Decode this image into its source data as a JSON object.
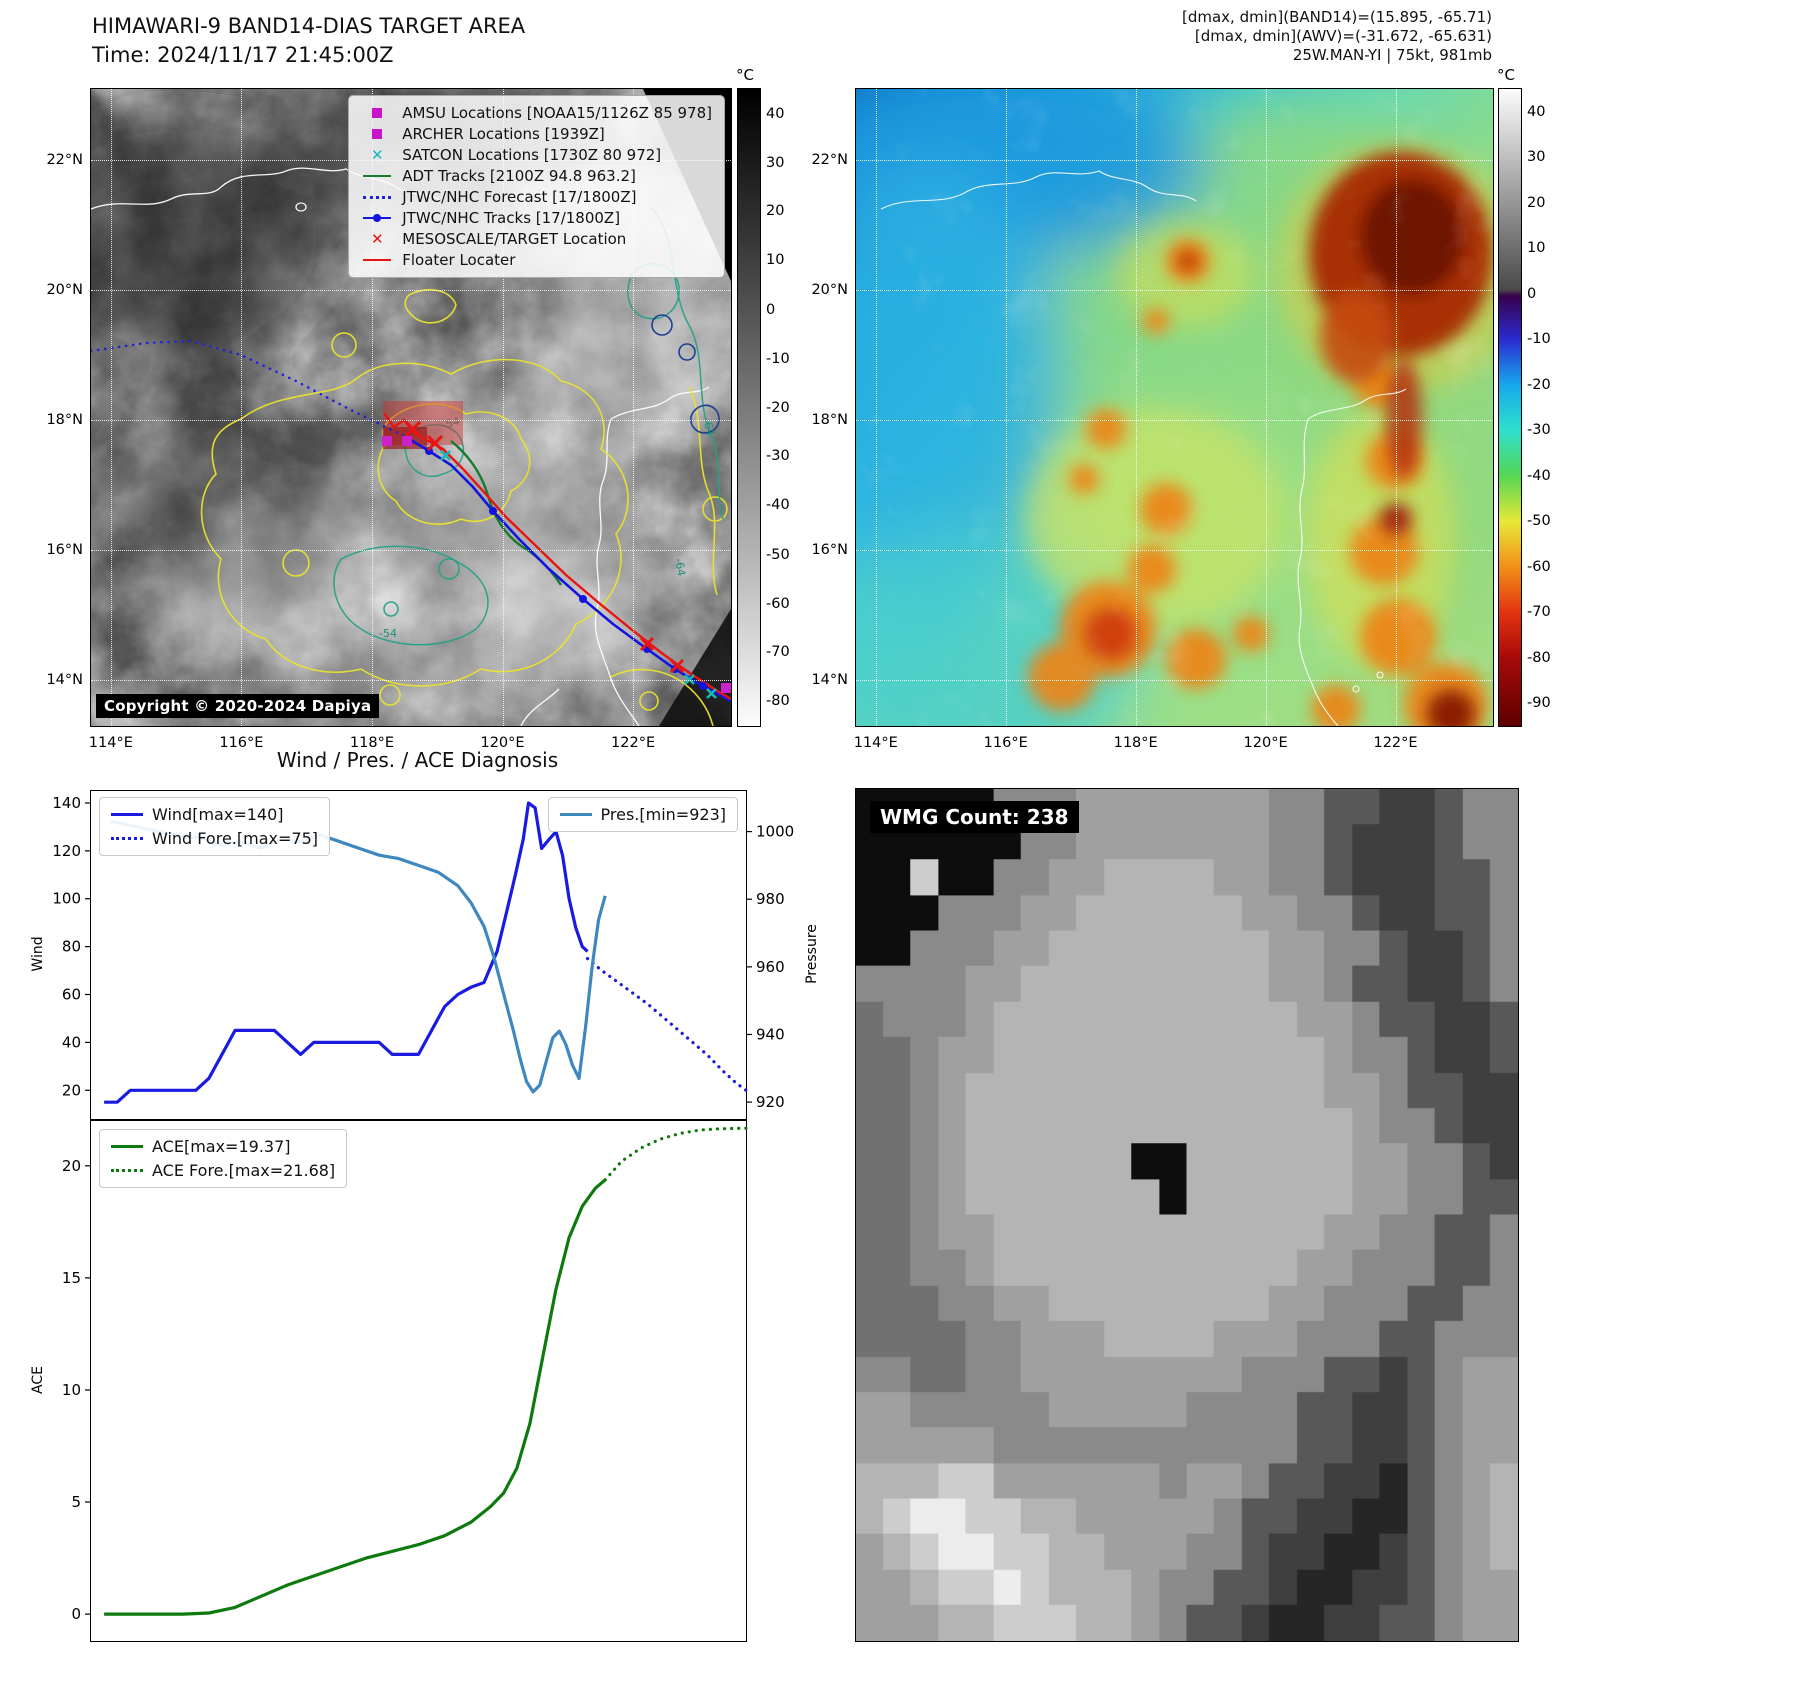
{
  "band14": {
    "title": "HIMAWARI-9 BAND14-DIAS TARGET AREA",
    "subtitle": "Time: 2024/11/17 21:45:00Z",
    "copyright": "Copyright © 2020-2024 Dapiya",
    "colorbar_unit": "°C",
    "colorbar_ticks": [
      {
        "label": "40",
        "pos": 0.0385
      },
      {
        "label": "30",
        "pos": 0.1154
      },
      {
        "label": "20",
        "pos": 0.1923
      },
      {
        "label": "10",
        "pos": 0.2692
      },
      {
        "label": "0",
        "pos": 0.3462
      },
      {
        "label": "-10",
        "pos": 0.4231
      },
      {
        "label": "-20",
        "pos": 0.5
      },
      {
        "label": "-30",
        "pos": 0.5769
      },
      {
        "label": "-40",
        "pos": 0.6538
      },
      {
        "label": "-50",
        "pos": 0.7308
      },
      {
        "label": "-60",
        "pos": 0.8077
      },
      {
        "label": "-70",
        "pos": 0.8846
      },
      {
        "label": "-80",
        "pos": 0.9615
      }
    ],
    "x_ticks": [
      {
        "label": "114°E",
        "pos": 0.031
      },
      {
        "label": "116°E",
        "pos": 0.235
      },
      {
        "label": "118°E",
        "pos": 0.439
      },
      {
        "label": "120°E",
        "pos": 0.643
      },
      {
        "label": "122°E",
        "pos": 0.847
      }
    ],
    "y_ticks": [
      {
        "label": "22°N",
        "pos": 0.112
      },
      {
        "label": "20°N",
        "pos": 0.316
      },
      {
        "label": "18°N",
        "pos": 0.52
      },
      {
        "label": "16°N",
        "pos": 0.724
      },
      {
        "label": "14°N",
        "pos": 0.928
      }
    ],
    "legend": [
      {
        "type": "square",
        "color": "#c814c8",
        "label": "AMSU Locations [NOAA15/1126Z 85 978]"
      },
      {
        "type": "square",
        "color": "#c814c8",
        "label": "ARCHER Locations [1939Z]"
      },
      {
        "type": "x",
        "color": "#16b8b8",
        "label": "SATCON Locations [1730Z 80 972]"
      },
      {
        "type": "line",
        "color": "#177a2e",
        "label": "ADT Tracks [2100Z 94.8 963.2]"
      },
      {
        "type": "dotted",
        "color": "#2121dd",
        "label": "JTWC/NHC Forecast [17/1800Z]"
      },
      {
        "type": "line-dot",
        "color": "#1414e0",
        "label": "JTWC/NHC Tracks [17/1800Z]"
      },
      {
        "type": "x",
        "color": "#e81414",
        "label": "MESOSCALE/TARGET Location"
      },
      {
        "type": "line",
        "color": "#e81414",
        "label": "Floater Locater"
      }
    ],
    "contour_labels": [
      "-54",
      "-54",
      "-64",
      "-64"
    ]
  },
  "awv": {
    "header_lines": [
      "[dmax, dmin](BAND14)=(15.895, -65.71)",
      "[dmax, dmin](AWV)=(-31.672, -65.631)",
      "25W.MAN-YI | 75kt, 981mb"
    ],
    "colorbar_unit": "°C",
    "colorbar_ticks": [
      {
        "label": "40",
        "pos": 0.0357
      },
      {
        "label": "30",
        "pos": 0.1071
      },
      {
        "label": "20",
        "pos": 0.1786
      },
      {
        "label": "10",
        "pos": 0.25
      },
      {
        "label": "0",
        "pos": 0.3214
      },
      {
        "label": "-10",
        "pos": 0.3929
      },
      {
        "label": "-20",
        "pos": 0.4643
      },
      {
        "label": "-30",
        "pos": 0.5357
      },
      {
        "label": "-40",
        "pos": 0.6071
      },
      {
        "label": "-50",
        "pos": 0.6786
      },
      {
        "label": "-60",
        "pos": 0.75
      },
      {
        "label": "-70",
        "pos": 0.8214
      },
      {
        "label": "-80",
        "pos": 0.8929
      },
      {
        "label": "-90",
        "pos": 0.9643
      }
    ],
    "x_ticks": [
      {
        "label": "114°E",
        "pos": 0.031
      },
      {
        "label": "116°E",
        "pos": 0.235
      },
      {
        "label": "118°E",
        "pos": 0.439
      },
      {
        "label": "120°E",
        "pos": 0.643
      },
      {
        "label": "122°E",
        "pos": 0.847
      }
    ],
    "y_ticks": [
      {
        "label": "22°N",
        "pos": 0.112
      },
      {
        "label": "20°N",
        "pos": 0.316
      },
      {
        "label": "18°N",
        "pos": 0.52
      },
      {
        "label": "16°N",
        "pos": 0.724
      },
      {
        "label": "14°N",
        "pos": 0.928
      }
    ]
  },
  "wmg": {
    "label": "WMG Count: 238",
    "palette": {
      "0": "#0d0d0d",
      "1": "#262626",
      "2": "#3f3f3f",
      "3": "#585858",
      "4": "#717171",
      "5": "#8a8a8a",
      "6": "#a0a0a0",
      "7": "#b4b4b4",
      "8": "#cdcdcd",
      "9": "#ececec"
    },
    "rows": [
      "000005556666666553322355",
      "000000556666666553222355",
      "008005566777766553222335",
      "000555667777776655322335",
      "005556677777777665532235",
      "555566777777777665332235",
      "455567777777777766533223",
      "445667777777777776553223",
      "445677777777777776653322",
      "445677777777777777655322",
      "445677777700777777665532",
      "445677777770777777665533",
      "445667777777777776655335",
      "445567777777777766555335",
      "444556677777777665553355",
      "444455666777766655533555",
      "554455666666665553323566",
      "665555566666555533223566",
      "666665555555555533223566",
      "777886666665665332213567",
      "789988776666653322113567",
      "678998877666553221123567",
      "667889877765533211223566",
      "666778887765332112233566"
    ]
  },
  "chart_data": [
    {
      "type": "line",
      "title": "Wind / Pres. / ACE Diagnosis",
      "ylabel_left": "Wind",
      "ylabel_right": "Pressure",
      "xlim": [
        0,
        1
      ],
      "ylim_left": [
        8,
        145
      ],
      "ylim_right": [
        915,
        1012
      ],
      "yticks_left": [
        20,
        40,
        60,
        80,
        100,
        120,
        140
      ],
      "yticks_right": [
        920,
        940,
        960,
        980,
        1000
      ],
      "grid": false,
      "legend_position": "upper-left / upper-right",
      "series": [
        {
          "name": "Wind[max=140]",
          "axis": "left",
          "style": "solid",
          "color": "#1a1ae0",
          "x": [
            0.02,
            0.04,
            0.06,
            0.08,
            0.1,
            0.12,
            0.14,
            0.16,
            0.18,
            0.2,
            0.22,
            0.24,
            0.26,
            0.28,
            0.3,
            0.32,
            0.34,
            0.36,
            0.38,
            0.4,
            0.42,
            0.44,
            0.46,
            0.48,
            0.5,
            0.52,
            0.54,
            0.56,
            0.58,
            0.6,
            0.62,
            0.635,
            0.648,
            0.66,
            0.668,
            0.678,
            0.688,
            0.7,
            0.71,
            0.72,
            0.73,
            0.74,
            0.75,
            0.758
          ],
          "y": [
            15,
            15,
            20,
            20,
            20,
            20,
            20,
            20,
            25,
            35,
            45,
            45,
            45,
            45,
            40,
            35,
            40,
            40,
            40,
            40,
            40,
            40,
            35,
            35,
            35,
            45,
            55,
            60,
            63,
            65,
            78,
            95,
            110,
            125,
            140,
            138,
            121,
            125,
            128,
            118,
            100,
            88,
            80,
            78
          ]
        },
        {
          "name": "Wind Fore.[max=75]",
          "axis": "left",
          "style": "dotted",
          "color": "#1a1ae0",
          "x": [
            0.758,
            0.78,
            0.8,
            0.82,
            0.85,
            0.88,
            0.91,
            0.94,
            0.965,
            0.985,
            1.0
          ],
          "y": [
            75,
            70,
            66,
            62,
            56,
            49,
            42,
            35,
            28,
            23,
            20
          ]
        },
        {
          "name": "Pres.[min=923]",
          "axis": "right",
          "style": "solid",
          "color": "#3f87bf",
          "x": [
            0.03,
            0.08,
            0.13,
            0.17,
            0.2,
            0.23,
            0.26,
            0.29,
            0.32,
            0.35,
            0.38,
            0.41,
            0.44,
            0.47,
            0.5,
            0.53,
            0.56,
            0.58,
            0.6,
            0.615,
            0.63,
            0.645,
            0.655,
            0.665,
            0.675,
            0.685,
            0.695,
            0.705,
            0.715,
            0.725,
            0.735,
            0.745,
            0.755,
            0.765,
            0.775,
            0.785
          ],
          "y": [
            1003,
            1001,
            999,
            998,
            996,
            997,
            995,
            998,
            997,
            999,
            997,
            995,
            993,
            992,
            990,
            988,
            984,
            979,
            972,
            963,
            952,
            941,
            933,
            926,
            923,
            925,
            932,
            939,
            941,
            937,
            931,
            927,
            942,
            960,
            974,
            981
          ]
        }
      ]
    },
    {
      "type": "line",
      "ylabel_left": "ACE",
      "xlim": [
        0,
        1
      ],
      "ylim_left": [
        -1.2,
        22.0
      ],
      "yticks_left": [
        0,
        5,
        10,
        15,
        20
      ],
      "grid": false,
      "legend_position": "upper-left",
      "series": [
        {
          "name": "ACE[max=19.37]",
          "axis": "left",
          "style": "solid",
          "color": "#0e7a0e",
          "x": [
            0.02,
            0.06,
            0.1,
            0.14,
            0.18,
            0.22,
            0.26,
            0.3,
            0.34,
            0.38,
            0.42,
            0.46,
            0.5,
            0.54,
            0.58,
            0.61,
            0.63,
            0.65,
            0.67,
            0.69,
            0.71,
            0.73,
            0.75,
            0.77,
            0.785
          ],
          "y": [
            0,
            0,
            0,
            0,
            0.05,
            0.3,
            0.8,
            1.3,
            1.7,
            2.1,
            2.5,
            2.8,
            3.1,
            3.5,
            4.1,
            4.8,
            5.4,
            6.5,
            8.5,
            11.5,
            14.5,
            16.8,
            18.2,
            19.0,
            19.37
          ]
        },
        {
          "name": "ACE Fore.[max=21.68]",
          "axis": "left",
          "style": "dotted",
          "color": "#0e7a0e",
          "x": [
            0.785,
            0.81,
            0.84,
            0.87,
            0.9,
            0.93,
            0.96,
            1.0
          ],
          "y": [
            19.37,
            20.2,
            20.8,
            21.2,
            21.45,
            21.6,
            21.65,
            21.68
          ]
        }
      ]
    }
  ]
}
